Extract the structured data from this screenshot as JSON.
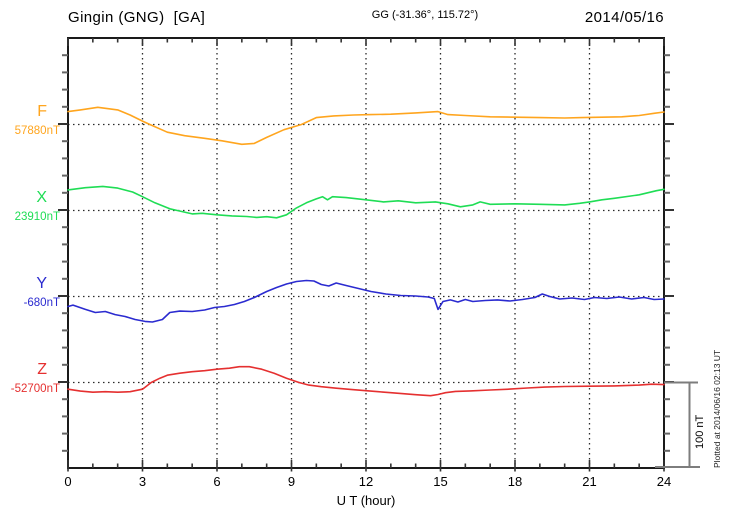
{
  "header": {
    "station": "Gingin (GNG)  [GA]",
    "coords": "GG (-31.36°, 115.72°)",
    "date": "2014/05/16"
  },
  "channels": [
    {
      "id": "F",
      "label": "F",
      "baseline_label": "57880nT",
      "base_value": 57880,
      "color": "#FFA51E"
    },
    {
      "id": "X",
      "label": "X",
      "baseline_label": "23910nT",
      "base_value": 23910,
      "color": "#1FDD55"
    },
    {
      "id": "Y",
      "label": "Y",
      "baseline_label": "-680nT",
      "base_value": -680,
      "color": "#2B2BD0"
    },
    {
      "id": "Z",
      "label": "Z",
      "baseline_label": "-52700nT",
      "base_value": -52700,
      "color": "#E53030"
    }
  ],
  "x_axis": {
    "ticks": [
      "0",
      "3",
      "6",
      "9",
      "12",
      "15",
      "18",
      "21",
      "24"
    ],
    "label": "U T (hour)"
  },
  "scale_bar": {
    "label": "100 nT",
    "span_nT": 100
  },
  "footer_note": "Plotted at 2014/06/16 02:13 UT",
  "colors": {
    "frame": "#1a1a1a",
    "grid": "#2a2a2a",
    "minor_tick": "#666666",
    "major_tick": "#333333",
    "scale_bar": "#7d7d7d"
  },
  "chart_data": {
    "type": "line",
    "title": "Gingin (GNG) [GA] magnetogram — 2014/05/16",
    "xlabel": "U T (hour)",
    "xlim": [
      0,
      24
    ],
    "x_gridlines_every_hours": 3,
    "nT_per_division": 100,
    "legend_position": "left-baseline-labels",
    "series": [
      {
        "name": "F",
        "baseline_nT": 57880,
        "points": [
          [
            0,
            57895
          ],
          [
            0.5,
            57897
          ],
          [
            1.2,
            57900
          ],
          [
            2,
            57897
          ],
          [
            2.5,
            57891
          ],
          [
            3,
            57884
          ],
          [
            3.3,
            57880
          ],
          [
            4,
            57871
          ],
          [
            4.7,
            57867
          ],
          [
            5.5,
            57864
          ],
          [
            6.2,
            57861
          ],
          [
            7,
            57857
          ],
          [
            7.5,
            57858
          ],
          [
            8,
            57865
          ],
          [
            8.7,
            57874
          ],
          [
            9.4,
            57880
          ],
          [
            10,
            57888
          ],
          [
            10.7,
            57890
          ],
          [
            11.5,
            57891
          ],
          [
            12.2,
            57891.5
          ],
          [
            13,
            57892
          ],
          [
            14,
            57893.5
          ],
          [
            14.9,
            57895
          ],
          [
            15.3,
            57891.5
          ],
          [
            16,
            57890.5
          ],
          [
            17,
            57889
          ],
          [
            18,
            57888.5
          ],
          [
            19,
            57888
          ],
          [
            20,
            57887.5
          ],
          [
            20.7,
            57888
          ],
          [
            21.5,
            57888.5
          ],
          [
            22.3,
            57889
          ],
          [
            23,
            57890.5
          ],
          [
            23.6,
            57893
          ],
          [
            24,
            57894.5
          ]
        ]
      },
      {
        "name": "X",
        "baseline_nT": 23910,
        "points": [
          [
            0,
            23934
          ],
          [
            0.7,
            23936.5
          ],
          [
            1.4,
            23938
          ],
          [
            2,
            23936
          ],
          [
            2.6,
            23931.5
          ],
          [
            3,
            23926
          ],
          [
            3.5,
            23919
          ],
          [
            4.1,
            23912
          ],
          [
            4.4,
            23910
          ],
          [
            5,
            23906
          ],
          [
            5.4,
            23906.8
          ],
          [
            6,
            23905
          ],
          [
            6.6,
            23903.7
          ],
          [
            7.2,
            23903
          ],
          [
            7.6,
            23902
          ],
          [
            8,
            23902.8
          ],
          [
            8.4,
            23901.5
          ],
          [
            8.8,
            23905
          ],
          [
            9.2,
            23913
          ],
          [
            9.6,
            23919
          ],
          [
            10,
            23923.5
          ],
          [
            10.25,
            23926
          ],
          [
            10.45,
            23922.5
          ],
          [
            10.65,
            23926
          ],
          [
            11.2,
            23925
          ],
          [
            12,
            23922.5
          ],
          [
            12.7,
            23920
          ],
          [
            13.3,
            23921.3
          ],
          [
            14,
            23919
          ],
          [
            14.8,
            23920
          ],
          [
            15.3,
            23917.8
          ],
          [
            15.8,
            23914.3
          ],
          [
            16.3,
            23916.5
          ],
          [
            16.6,
            23920
          ],
          [
            17,
            23917.2
          ],
          [
            18,
            23917.8
          ],
          [
            19,
            23917.2
          ],
          [
            20,
            23916.5
          ],
          [
            20.6,
            23918.4
          ],
          [
            21,
            23920
          ],
          [
            21.5,
            23922.4
          ],
          [
            22,
            23924.2
          ],
          [
            23,
            23928.2
          ],
          [
            23.7,
            23933
          ],
          [
            24,
            23934.6
          ]
        ]
      },
      {
        "name": "Y",
        "baseline_nT": -680,
        "points": [
          [
            0,
            -691.6
          ],
          [
            0.2,
            -690
          ],
          [
            0.7,
            -695
          ],
          [
            1.1,
            -698.6
          ],
          [
            1.5,
            -697.4
          ],
          [
            1.9,
            -701
          ],
          [
            2.3,
            -703.3
          ],
          [
            2.7,
            -706.7
          ],
          [
            3.1,
            -709
          ],
          [
            3.4,
            -709.7
          ],
          [
            3.8,
            -706.7
          ],
          [
            4.1,
            -698.6
          ],
          [
            4.5,
            -697
          ],
          [
            5,
            -697.4
          ],
          [
            5.5,
            -695.7
          ],
          [
            5.9,
            -692.8
          ],
          [
            6.3,
            -691.6
          ],
          [
            6.7,
            -689.3
          ],
          [
            7.1,
            -685.8
          ],
          [
            7.5,
            -681.2
          ],
          [
            8,
            -674.2
          ],
          [
            8.4,
            -669.5
          ],
          [
            8.8,
            -665.5
          ],
          [
            9.2,
            -662.6
          ],
          [
            9.6,
            -661.4
          ],
          [
            9.9,
            -662
          ],
          [
            10.2,
            -666
          ],
          [
            10.5,
            -667.8
          ],
          [
            10.8,
            -664.3
          ],
          [
            11.2,
            -667.2
          ],
          [
            11.7,
            -670.7
          ],
          [
            12.2,
            -674.2
          ],
          [
            12.8,
            -677.1
          ],
          [
            13.4,
            -678.8
          ],
          [
            14,
            -679.4
          ],
          [
            14.5,
            -680.6
          ],
          [
            14.75,
            -682.3
          ],
          [
            14.9,
            -695
          ],
          [
            15.1,
            -685.8
          ],
          [
            15.4,
            -684
          ],
          [
            15.7,
            -686.4
          ],
          [
            16,
            -683.5
          ],
          [
            16.3,
            -685.8
          ],
          [
            16.8,
            -684.6
          ],
          [
            17.3,
            -684
          ],
          [
            17.8,
            -685.2
          ],
          [
            18.3,
            -683.5
          ],
          [
            18.8,
            -681.2
          ],
          [
            19.1,
            -677.1
          ],
          [
            19.4,
            -680
          ],
          [
            19.8,
            -682.9
          ],
          [
            20.3,
            -681.7
          ],
          [
            20.8,
            -683.5
          ],
          [
            21.2,
            -681.2
          ],
          [
            21.7,
            -682.3
          ],
          [
            22.2,
            -680.6
          ],
          [
            22.7,
            -682.9
          ],
          [
            23.2,
            -681.2
          ],
          [
            23.6,
            -683.5
          ],
          [
            24,
            -682.9
          ]
        ]
      },
      {
        "name": "Z",
        "baseline_nT": -52700,
        "points": [
          [
            0,
            -52707.8
          ],
          [
            0.5,
            -52710
          ],
          [
            1,
            -52711.3
          ],
          [
            1.5,
            -52710.7
          ],
          [
            2,
            -52711.3
          ],
          [
            2.5,
            -52710.7
          ],
          [
            3,
            -52707.8
          ],
          [
            3.35,
            -52700
          ],
          [
            3.7,
            -52695
          ],
          [
            4,
            -52691.5
          ],
          [
            4.5,
            -52689.2
          ],
          [
            5,
            -52687.4
          ],
          [
            5.5,
            -52686.3
          ],
          [
            6,
            -52684.5
          ],
          [
            6.5,
            -52683.4
          ],
          [
            6.9,
            -52681.6
          ],
          [
            7.3,
            -52681.6
          ],
          [
            7.8,
            -52684.5
          ],
          [
            8.3,
            -52689.2
          ],
          [
            8.8,
            -52695
          ],
          [
            9.3,
            -52700
          ],
          [
            9.7,
            -52703
          ],
          [
            10.2,
            -52704.9
          ],
          [
            10.8,
            -52706.6
          ],
          [
            11.5,
            -52708.4
          ],
          [
            12,
            -52709.5
          ],
          [
            12.5,
            -52710.7
          ],
          [
            13,
            -52711.9
          ],
          [
            13.5,
            -52713
          ],
          [
            14,
            -52714.2
          ],
          [
            14.6,
            -52715.3
          ],
          [
            14.9,
            -52714
          ],
          [
            15.2,
            -52711.9
          ],
          [
            15.6,
            -52710.3
          ],
          [
            16.2,
            -52709.8
          ],
          [
            17,
            -52708.7
          ],
          [
            17.8,
            -52707.7
          ],
          [
            18.5,
            -52706.4
          ],
          [
            19.2,
            -52705.3
          ],
          [
            20,
            -52704.6
          ],
          [
            21,
            -52704.3
          ],
          [
            22,
            -52703.9
          ],
          [
            23,
            -52703
          ],
          [
            23.5,
            -52702
          ],
          [
            24,
            -52702.4
          ]
        ]
      }
    ]
  }
}
